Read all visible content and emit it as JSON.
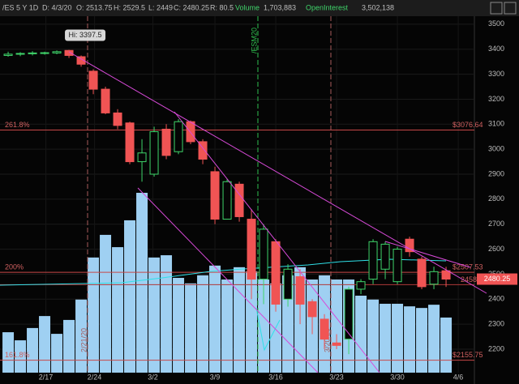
{
  "header": {
    "symbol": "/ES 5 Y 1D",
    "date": "D: 4/3/20",
    "open": "O: 2513.75",
    "high": "H: 2529.5",
    "low": "L: 2449",
    "close": "C: 2480.25",
    "range": "R: 80.5",
    "volume_label": "Volume",
    "volume": "1,703,883",
    "oi_label": "OpenInterest",
    "oi": "3,502,138"
  },
  "chart_data": {
    "type": "candlestick",
    "open": [
      3375,
      3380,
      3382,
      3383,
      3385,
      3395,
      3370,
      3312,
      3240,
      3145,
      3105,
      2950,
      2900,
      3080,
      2990,
      3110,
      3030,
      2910,
      2720,
      2860,
      2720,
      2480,
      2630,
      2400,
      2490,
      2390,
      2320,
      2225,
      2240,
      2440,
      2480,
      2520,
      2470,
      2640,
      2560,
      2460,
      2513.75
    ],
    "high": [
      3390,
      3388,
      3392,
      3390,
      3395,
      3397.5,
      3375,
      3320,
      3250,
      3160,
      3110,
      3040,
      3090,
      3100,
      3120,
      3115,
      3040,
      2930,
      2880,
      2870,
      2760,
      2700,
      2640,
      2540,
      2520,
      2400,
      2340,
      2260,
      2450,
      2480,
      2640,
      2630,
      2610,
      2650,
      2570,
      2530,
      2529.5
    ],
    "low": [
      3370,
      3372,
      3375,
      3378,
      3380,
      3365,
      3330,
      3220,
      3140,
      3080,
      2940,
      2870,
      2890,
      2960,
      2980,
      3020,
      2940,
      2700,
      2720,
      2710,
      2400,
      2380,
      2350,
      2370,
      2300,
      2260,
      2200,
      2200,
      2180,
      2420,
      2460,
      2480,
      2460,
      2570,
      2440,
      2440,
      2449
    ],
    "close": [
      3380,
      3383,
      3385,
      3386,
      3390,
      3375,
      3340,
      3240,
      3145,
      3095,
      2950,
      2985,
      3070,
      2975,
      3110,
      3030,
      2960,
      2720,
      2870,
      2730,
      2480,
      2680,
      2380,
      2520,
      2380,
      2330,
      2240,
      2215,
      2440,
      2470,
      2630,
      2620,
      2600,
      2590,
      2450,
      2510,
      2480.25
    ],
    "volume": [
      1250000,
      1000000,
      1380000,
      1750000,
      1200000,
      1630000,
      2260000,
      3560000,
      4260000,
      3880000,
      4710000,
      5560000,
      3560000,
      3630000,
      2930000,
      2760000,
      3010000,
      3310000,
      2880000,
      3260000,
      3130000,
      2880000,
      2760000,
      3010000,
      3260000,
      2880000,
      3010000,
      2880000,
      2880000,
      2380000,
      2260000,
      2130000,
      2130000,
      2050000,
      2000000,
      2100000,
      1703883
    ],
    "up_color": "#3fd46a",
    "down_color": "#f05454",
    "volume_color": "#9fd0f2",
    "high_label": "Hi: 3397.5",
    "ylim": [
      2106,
      3532
    ],
    "yticks": [
      2200,
      2300,
      2400,
      2500,
      2600,
      2700,
      2800,
      2900,
      3000,
      3100,
      3200,
      3300,
      3400,
      3500
    ],
    "xlim": [
      -0.67,
      38.33
    ],
    "xticks": [
      {
        "value": 3.1,
        "label": "2/17"
      },
      {
        "value": 7.1,
        "label": "2/24"
      },
      {
        "value": 11.9,
        "label": "3/2"
      },
      {
        "value": 17,
        "label": "3/9"
      },
      {
        "value": 22,
        "label": "3/16"
      },
      {
        "value": 27,
        "label": "3/23"
      },
      {
        "value": 32,
        "label": "3/30"
      },
      {
        "value": 37,
        "label": "4/6"
      }
    ],
    "levels": [
      {
        "name": "261.8%",
        "value": 3076.64,
        "value_label": "$3076.64"
      },
      {
        "name": "200%",
        "value": 2507.53,
        "value_label": "$2507.53"
      },
      {
        "name": "161.8%",
        "value": 2155.75,
        "value_label": "$2155.75"
      }
    ],
    "price_line": 2458,
    "markers": [
      {
        "label": "2/21/20",
        "x": 6.53,
        "color": "#a85a5a"
      },
      {
        "label": "/ESM20",
        "x": 20.53,
        "color": "#2fbf4f"
      },
      {
        "label": "3/20/20",
        "x": 26.53,
        "color": "#a85a5a"
      }
    ]
  }
}
